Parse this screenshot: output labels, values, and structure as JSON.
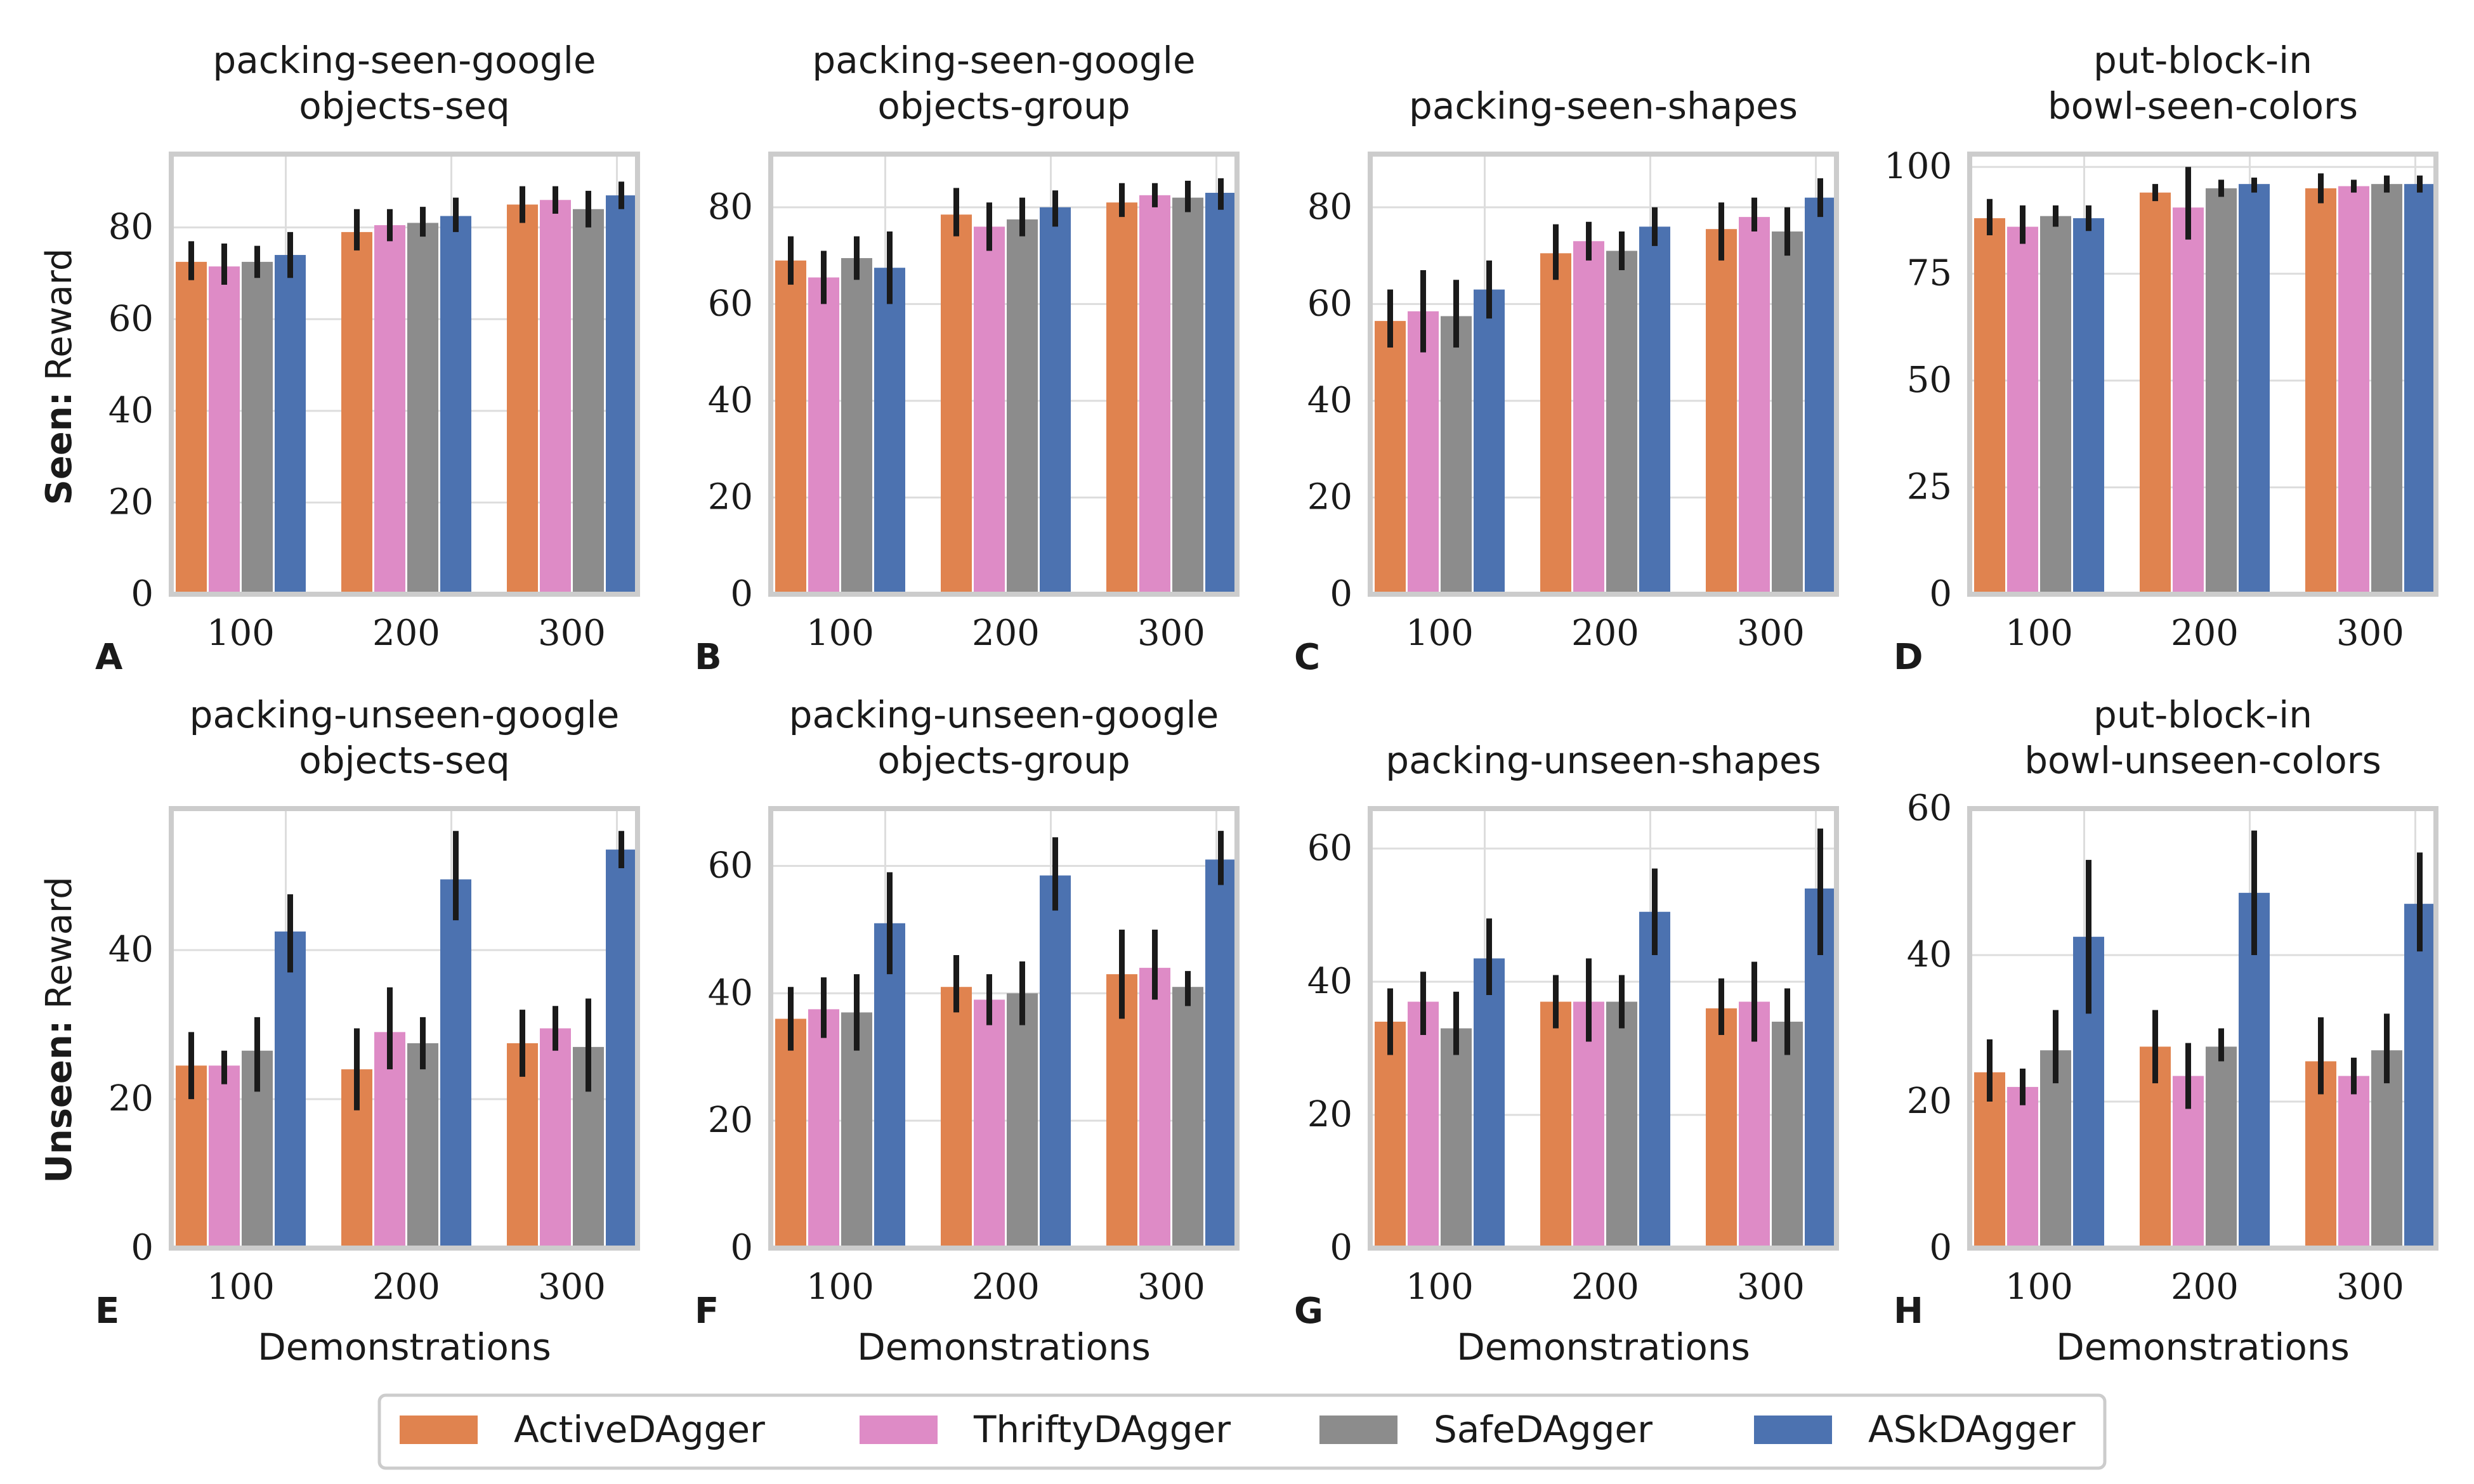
{
  "row_labels": [
    {
      "bold": "Seen:",
      "rest": " Reward"
    },
    {
      "bold": "Unseen:",
      "rest": " Reward"
    }
  ],
  "xlabel": "Demonstrations",
  "colors": {
    "ActiveDAgger": "#e0834f",
    "ThriftyDAgger": "#de8bc6",
    "SafeDAgger": "#8c8c8c",
    "ASkDAgger": "#4c72b0",
    "errorbar": "#1a1a1a",
    "frame": "#cccccc",
    "grid": "#dddddd"
  },
  "legend": [
    "ActiveDAgger",
    "ThriftyDAgger",
    "SafeDAgger",
    "ASkDAgger"
  ],
  "chart_data": [
    {
      "type": "bar",
      "panel": "A",
      "title": [
        "packing-seen-google",
        "objects-seq"
      ],
      "categories": [
        "100",
        "200",
        "300"
      ],
      "ylim": [
        0,
        96
      ],
      "yticks": [
        0,
        20,
        40,
        60,
        80
      ],
      "series": [
        {
          "name": "ActiveDAgger",
          "values": [
            72.5,
            79,
            85
          ],
          "errors": [
            [
              68.5,
              77
            ],
            [
              75,
              84
            ],
            [
              81,
              89
            ]
          ]
        },
        {
          "name": "ThriftyDAgger",
          "values": [
            71.5,
            80.5,
            86
          ],
          "errors": [
            [
              67.5,
              76.5
            ],
            [
              77,
              84
            ],
            [
              83,
              89
            ]
          ]
        },
        {
          "name": "SafeDAgger",
          "values": [
            72.5,
            81,
            84
          ],
          "errors": [
            [
              69,
              76
            ],
            [
              78,
              84.5
            ],
            [
              80,
              88
            ]
          ]
        },
        {
          "name": "ASkDAgger",
          "values": [
            74,
            82.5,
            87
          ],
          "errors": [
            [
              69,
              79
            ],
            [
              79,
              86.5
            ],
            [
              84,
              90
            ]
          ]
        }
      ]
    },
    {
      "type": "bar",
      "panel": "B",
      "title": [
        "packing-seen-google",
        "objects-group"
      ],
      "categories": [
        "100",
        "200",
        "300"
      ],
      "ylim": [
        0,
        91
      ],
      "yticks": [
        0,
        20,
        40,
        60,
        80
      ],
      "series": [
        {
          "name": "ActiveDAgger",
          "values": [
            69,
            78.5,
            81
          ],
          "errors": [
            [
              64,
              74
            ],
            [
              74,
              84
            ],
            [
              78,
              85
            ]
          ]
        },
        {
          "name": "ThriftyDAgger",
          "values": [
            65.5,
            76,
            82.5
          ],
          "errors": [
            [
              60,
              71
            ],
            [
              71,
              81
            ],
            [
              80,
              85
            ]
          ]
        },
        {
          "name": "SafeDAgger",
          "values": [
            69.5,
            77.5,
            82
          ],
          "errors": [
            [
              65,
              74
            ],
            [
              74,
              82
            ],
            [
              79,
              85.5
            ]
          ]
        },
        {
          "name": "ASkDAgger",
          "values": [
            67.5,
            80,
            83
          ],
          "errors": [
            [
              60,
              75
            ],
            [
              76,
              83.5
            ],
            [
              79.5,
              86
            ]
          ]
        }
      ]
    },
    {
      "type": "bar",
      "panel": "C",
      "title": [
        "packing-seen-shapes"
      ],
      "categories": [
        "100",
        "200",
        "300"
      ],
      "ylim": [
        0,
        91
      ],
      "yticks": [
        0,
        20,
        40,
        60,
        80
      ],
      "series": [
        {
          "name": "ActiveDAgger",
          "values": [
            56.5,
            70.5,
            75.5
          ],
          "errors": [
            [
              51,
              63
            ],
            [
              65,
              76.5
            ],
            [
              69,
              81
            ]
          ]
        },
        {
          "name": "ThriftyDAgger",
          "values": [
            58.5,
            73,
            78
          ],
          "errors": [
            [
              50,
              67
            ],
            [
              69,
              77
            ],
            [
              75,
              82
            ]
          ]
        },
        {
          "name": "SafeDAgger",
          "values": [
            57.5,
            71,
            75
          ],
          "errors": [
            [
              51,
              65
            ],
            [
              67,
              75
            ],
            [
              70,
              80
            ]
          ]
        },
        {
          "name": "ASkDAgger",
          "values": [
            63,
            76,
            82
          ],
          "errors": [
            [
              57,
              69
            ],
            [
              72,
              80
            ],
            [
              78,
              86
            ]
          ]
        }
      ]
    },
    {
      "type": "bar",
      "panel": "D",
      "title": [
        "put-block-in",
        "bowl-seen-colors"
      ],
      "categories": [
        "100",
        "200",
        "300"
      ],
      "ylim": [
        0,
        103
      ],
      "yticks": [
        0,
        25,
        50,
        75,
        100
      ],
      "series": [
        {
          "name": "ActiveDAgger",
          "values": [
            88,
            94,
            95
          ],
          "errors": [
            [
              84,
              92.5
            ],
            [
              92,
              96
            ],
            [
              91.5,
              98.5
            ]
          ]
        },
        {
          "name": "ThriftyDAgger",
          "values": [
            86,
            90.5,
            95.5
          ],
          "errors": [
            [
              82,
              91
            ],
            [
              83,
              100
            ],
            [
              94,
              97
            ]
          ]
        },
        {
          "name": "SafeDAgger",
          "values": [
            88.5,
            95,
            96
          ],
          "errors": [
            [
              86,
              91
            ],
            [
              93,
              97
            ],
            [
              94,
              98
            ]
          ]
        },
        {
          "name": "ASkDAgger",
          "values": [
            88,
            96,
            96
          ],
          "errors": [
            [
              85,
              91
            ],
            [
              94,
              97.5
            ],
            [
              94,
              98
            ]
          ]
        }
      ]
    },
    {
      "type": "bar",
      "panel": "E",
      "title": [
        "packing-unseen-google",
        "objects-seq"
      ],
      "categories": [
        "100",
        "200",
        "300"
      ],
      "ylim": [
        0,
        59
      ],
      "yticks": [
        0,
        20,
        40
      ],
      "series": [
        {
          "name": "ActiveDAgger",
          "values": [
            24.5,
            24,
            27.5
          ],
          "errors": [
            [
              20,
              29
            ],
            [
              18.5,
              29.5
            ],
            [
              23,
              32
            ]
          ]
        },
        {
          "name": "ThriftyDAgger",
          "values": [
            24.5,
            29,
            29.5
          ],
          "errors": [
            [
              22,
              26.5
            ],
            [
              24,
              35
            ],
            [
              26.5,
              32.5
            ]
          ]
        },
        {
          "name": "SafeDAgger",
          "values": [
            26.5,
            27.5,
            27
          ],
          "errors": [
            [
              21,
              31
            ],
            [
              24,
              31
            ],
            [
              21,
              33.5
            ]
          ]
        },
        {
          "name": "ASkDAgger",
          "values": [
            42.5,
            49.5,
            53.5
          ],
          "errors": [
            [
              37,
              47.5
            ],
            [
              44,
              56
            ],
            [
              51,
              56
            ]
          ]
        }
      ]
    },
    {
      "type": "bar",
      "panel": "F",
      "title": [
        "packing-unseen-google",
        "objects-group"
      ],
      "categories": [
        "100",
        "200",
        "300"
      ],
      "ylim": [
        0,
        69
      ],
      "yticks": [
        0,
        20,
        40,
        60
      ],
      "series": [
        {
          "name": "ActiveDAgger",
          "values": [
            36,
            41,
            43
          ],
          "errors": [
            [
              31,
              41
            ],
            [
              37,
              46
            ],
            [
              36,
              50
            ]
          ]
        },
        {
          "name": "ThriftyDAgger",
          "values": [
            37.5,
            39,
            44
          ],
          "errors": [
            [
              33,
              42.5
            ],
            [
              35,
              43
            ],
            [
              39,
              50
            ]
          ]
        },
        {
          "name": "SafeDAgger",
          "values": [
            37,
            40,
            41
          ],
          "errors": [
            [
              31,
              43
            ],
            [
              35,
              45
            ],
            [
              38,
              43.5
            ]
          ]
        },
        {
          "name": "ASkDAgger",
          "values": [
            51,
            58.5,
            61
          ],
          "errors": [
            [
              43,
              59
            ],
            [
              53,
              64.5
            ],
            [
              57,
              65.5
            ]
          ]
        }
      ]
    },
    {
      "type": "bar",
      "panel": "G",
      "title": [
        "packing-unseen-shapes"
      ],
      "categories": [
        "100",
        "200",
        "300"
      ],
      "ylim": [
        0,
        66
      ],
      "yticks": [
        0,
        20,
        40,
        60
      ],
      "series": [
        {
          "name": "ActiveDAgger",
          "values": [
            34,
            37,
            36
          ],
          "errors": [
            [
              29,
              39
            ],
            [
              33,
              41
            ],
            [
              32,
              40.5
            ]
          ]
        },
        {
          "name": "ThriftyDAgger",
          "values": [
            37,
            37,
            37
          ],
          "errors": [
            [
              32,
              41.5
            ],
            [
              31,
              43.5
            ],
            [
              31,
              43
            ]
          ]
        },
        {
          "name": "SafeDAgger",
          "values": [
            33,
            37,
            34
          ],
          "errors": [
            [
              29,
              38.5
            ],
            [
              33,
              41
            ],
            [
              29,
              39
            ]
          ]
        },
        {
          "name": "ASkDAgger",
          "values": [
            43.5,
            50.5,
            54
          ],
          "errors": [
            [
              38,
              49.5
            ],
            [
              44,
              57
            ],
            [
              44,
              63
            ]
          ]
        }
      ]
    },
    {
      "type": "bar",
      "panel": "H",
      "title": [
        "put-block-in",
        "bowl-unseen-colors"
      ],
      "categories": [
        "100",
        "200",
        "300"
      ],
      "ylim": [
        0,
        60
      ],
      "yticks": [
        0,
        20,
        40,
        60
      ],
      "series": [
        {
          "name": "ActiveDAgger",
          "values": [
            24,
            27.5,
            25.5
          ],
          "errors": [
            [
              20,
              28.5
            ],
            [
              22.5,
              32.5
            ],
            [
              21,
              31.5
            ]
          ]
        },
        {
          "name": "ThriftyDAgger",
          "values": [
            22,
            23.5,
            23.5
          ],
          "errors": [
            [
              19.5,
              24.5
            ],
            [
              19,
              28
            ],
            [
              21,
              26
            ]
          ]
        },
        {
          "name": "SafeDAgger",
          "values": [
            27,
            27.5,
            27
          ],
          "errors": [
            [
              22.5,
              32.5
            ],
            [
              25.5,
              30
            ],
            [
              22.5,
              32
            ]
          ]
        },
        {
          "name": "ASkDAgger",
          "values": [
            42.5,
            48.5,
            47
          ],
          "errors": [
            [
              32,
              53
            ],
            [
              40,
              57
            ],
            [
              40.5,
              54
            ]
          ]
        }
      ]
    }
  ]
}
